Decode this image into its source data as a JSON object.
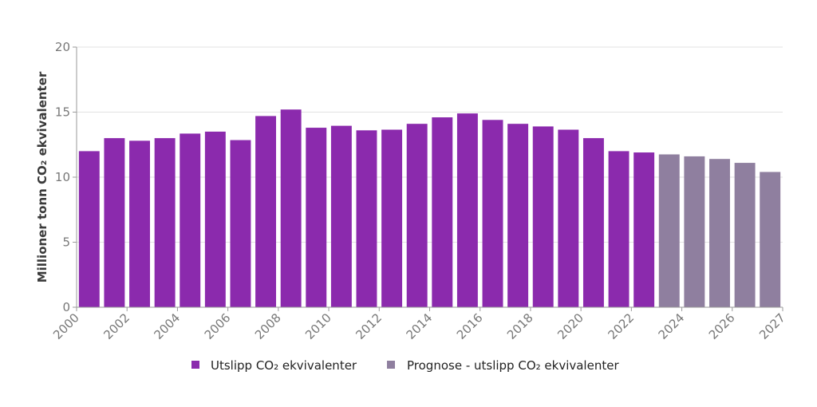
{
  "chart_data": {
    "type": "bar",
    "ylabel": "Millioner tonn CO₂ ekvivalenter",
    "ylim": [
      0,
      20
    ],
    "yticks": [
      0,
      5,
      10,
      15,
      20
    ],
    "grid": true,
    "legend_position": "bottom",
    "x_tick_labels": [
      "2000",
      "2002",
      "2004",
      "2006",
      "2008",
      "2010",
      "2012",
      "2014",
      "2016",
      "2018",
      "2020",
      "2022",
      "2024",
      "2026",
      "2027"
    ],
    "categories": [
      "2000",
      "2001",
      "2002",
      "2003",
      "2004",
      "2005",
      "2006",
      "2007",
      "2008",
      "2009",
      "2010",
      "2011",
      "2012",
      "2013",
      "2014",
      "2015",
      "2016",
      "2017",
      "2018",
      "2019",
      "2020",
      "2021",
      "2022",
      "2023",
      "2024",
      "2025",
      "2026",
      "2027"
    ],
    "series": [
      {
        "name": "Utslipp CO₂ ekvivalenter",
        "color": "#8b2aad",
        "x": [
          "2000",
          "2001",
          "2002",
          "2003",
          "2004",
          "2005",
          "2006",
          "2007",
          "2008",
          "2009",
          "2010",
          "2011",
          "2012",
          "2013",
          "2014",
          "2015",
          "2016",
          "2017",
          "2018",
          "2019",
          "2020",
          "2021",
          "2022"
        ],
        "values": [
          12.0,
          13.0,
          12.8,
          13.0,
          13.35,
          13.5,
          12.85,
          14.7,
          15.2,
          13.8,
          13.95,
          13.6,
          13.65,
          14.1,
          14.6,
          14.9,
          14.4,
          14.1,
          13.9,
          13.65,
          13.0,
          12.0,
          11.9
        ]
      },
      {
        "name": "Prognose - utslipp CO₂ ekvivalenter",
        "color": "#8f7f9f",
        "x": [
          "2023",
          "2024",
          "2025",
          "2026",
          "2027"
        ],
        "values": [
          11.75,
          11.6,
          11.4,
          11.1,
          10.4
        ]
      }
    ]
  }
}
